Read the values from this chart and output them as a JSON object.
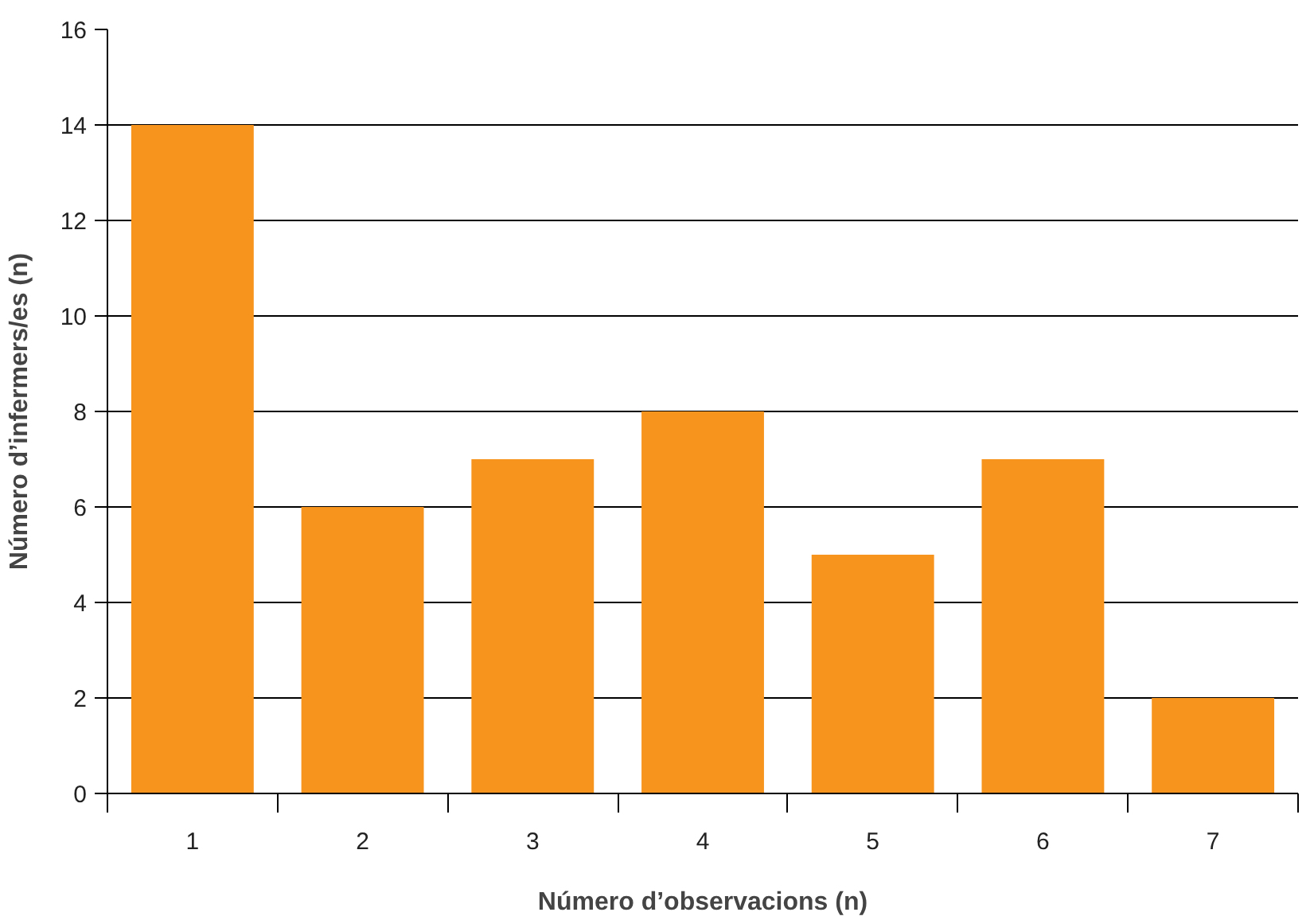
{
  "chart_data": {
    "type": "bar",
    "xlabel": "Número d’observacions (n)",
    "ylabel": "Número d’infermers/es (n)",
    "categories": [
      "1",
      "2",
      "3",
      "4",
      "5",
      "6",
      "7"
    ],
    "values": [
      14,
      6,
      7,
      8,
      5,
      7,
      2
    ],
    "color": "#f7941d",
    "ylim": [
      0,
      16
    ],
    "yticks": [
      0,
      2,
      4,
      6,
      8,
      10,
      12,
      14,
      16
    ],
    "grid": "y"
  }
}
